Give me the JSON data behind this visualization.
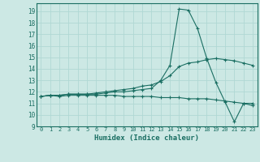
{
  "xlabel": "Humidex (Indice chaleur)",
  "bg_color": "#cce8e4",
  "line_color": "#1a6e62",
  "grid_color": "#b0d8d4",
  "xlim": [
    -0.5,
    23.5
  ],
  "ylim": [
    9,
    19.7
  ],
  "yticks": [
    9,
    10,
    11,
    12,
    13,
    14,
    15,
    16,
    17,
    18,
    19
  ],
  "xticks": [
    0,
    1,
    2,
    3,
    4,
    5,
    6,
    7,
    8,
    9,
    10,
    11,
    12,
    13,
    14,
    15,
    16,
    17,
    18,
    19,
    20,
    21,
    22,
    23
  ],
  "line1_x": [
    0,
    1,
    2,
    3,
    4,
    5,
    6,
    7,
    8,
    9,
    10,
    11,
    12,
    13,
    14,
    15,
    16,
    17,
    18,
    19,
    20,
    21,
    22,
    23
  ],
  "line1_y": [
    11.6,
    11.7,
    11.7,
    11.8,
    11.8,
    11.8,
    11.8,
    11.9,
    12.0,
    12.0,
    12.1,
    12.2,
    12.3,
    13.0,
    14.3,
    19.2,
    19.1,
    17.5,
    14.9,
    12.8,
    11.1,
    9.4,
    11.0,
    10.8
  ],
  "line2_x": [
    0,
    1,
    2,
    3,
    4,
    5,
    6,
    7,
    8,
    9,
    10,
    11,
    12,
    13,
    14,
    15,
    16,
    17,
    18,
    19,
    20,
    21,
    22,
    23
  ],
  "line2_y": [
    11.6,
    11.7,
    11.7,
    11.8,
    11.8,
    11.8,
    11.9,
    12.0,
    12.1,
    12.2,
    12.3,
    12.5,
    12.6,
    12.9,
    13.4,
    14.2,
    14.5,
    14.6,
    14.8,
    14.9,
    14.8,
    14.7,
    14.5,
    14.3
  ],
  "line3_x": [
    0,
    1,
    2,
    3,
    4,
    5,
    6,
    7,
    8,
    9,
    10,
    11,
    12,
    13,
    14,
    15,
    16,
    17,
    18,
    19,
    20,
    21,
    22,
    23
  ],
  "line3_y": [
    11.6,
    11.7,
    11.6,
    11.7,
    11.7,
    11.7,
    11.7,
    11.7,
    11.7,
    11.6,
    11.6,
    11.6,
    11.6,
    11.5,
    11.5,
    11.5,
    11.4,
    11.4,
    11.4,
    11.3,
    11.2,
    11.1,
    11.0,
    11.0
  ]
}
